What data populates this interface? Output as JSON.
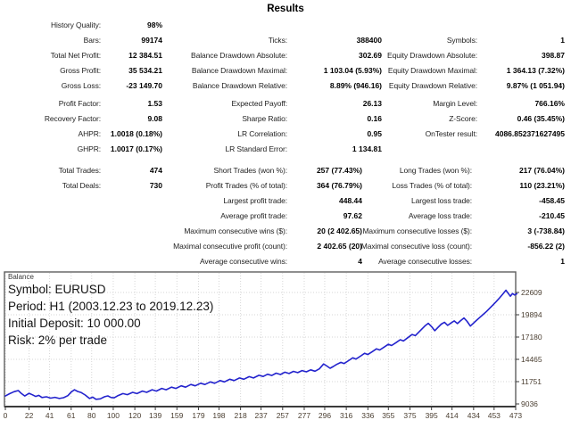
{
  "title": "Results",
  "stats_blocks": [
    [
      [
        "History Quality:",
        "98%",
        "",
        "",
        "",
        ""
      ],
      [
        "Bars:",
        "99174",
        "Ticks:",
        "388400",
        "Symbols:",
        "1"
      ],
      [
        "Total Net Profit:",
        "12 384.51",
        "Balance Drawdown Absolute:",
        "302.69",
        "Equity Drawdown Absolute:",
        "398.87"
      ],
      [
        "Gross Profit:",
        "35 534.21",
        "Balance Drawdown Maximal:",
        "1 103.04 (5.93%)",
        "Equity Drawdown Maximal:",
        "1 364.13 (7.32%)"
      ],
      [
        "Gross Loss:",
        "-23 149.70",
        "Balance Drawdown Relative:",
        "8.89% (946.16)",
        "Equity Drawdown Relative:",
        "9.87% (1 051.94)"
      ]
    ],
    [
      [
        "Profit Factor:",
        "1.53",
        "Expected Payoff:",
        "26.13",
        "Margin Level:",
        "766.16%"
      ],
      [
        "Recovery Factor:",
        "9.08",
        "Sharpe Ratio:",
        "0.16",
        "Z-Score:",
        "0.46 (35.45%)"
      ],
      [
        "AHPR:",
        "1.0018 (0.18%)",
        "LR Correlation:",
        "0.95",
        "OnTester result:",
        "4086.852371627495"
      ],
      [
        "GHPR:",
        "1.0017 (0.17%)",
        "LR Standard Error:",
        "1 134.81",
        "",
        ""
      ]
    ],
    [
      [
        "Total Trades:",
        "474",
        "Short Trades (won %):",
        "257 (77.43%)",
        "Long Trades (won %):",
        "217 (76.04%)"
      ],
      [
        "Total Deals:",
        "730",
        "Profit Trades (% of total):",
        "364 (76.79%)",
        "Loss Trades (% of total):",
        "110 (23.21%)"
      ],
      [
        "",
        "",
        "Largest profit trade:",
        "448.44",
        "Largest loss trade:",
        "-458.45"
      ],
      [
        "",
        "",
        "Average profit trade:",
        "97.62",
        "Average loss trade:",
        "-210.45"
      ],
      [
        "",
        "",
        "Maximum consecutive wins ($):",
        "20 (2 402.65)",
        "Maximum consecutive losses ($):",
        "3 (-738.84)"
      ],
      [
        "",
        "",
        "Maximal consecutive profit (count):",
        "2 402.65 (20)",
        "Maximal consecutive loss (count):",
        "-856.22 (2)"
      ],
      [
        "",
        "",
        "Average consecutive wins:",
        "4",
        "Average consecutive losses:",
        "1"
      ]
    ]
  ],
  "chart_data": {
    "type": "line",
    "title": "Balance",
    "annotations": [
      "Symbol: EURUSD",
      "Period: H1 (2003.12.23 to 2019.12.23)",
      "Initial Deposit: 10 000.00",
      "Risk: 2% per trade"
    ],
    "xlabel": "",
    "ylabel": "",
    "x_ticks": [
      0,
      22,
      41,
      61,
      80,
      100,
      120,
      139,
      159,
      179,
      198,
      218,
      237,
      257,
      277,
      296,
      316,
      336,
      355,
      375,
      395,
      414,
      434,
      453,
      473
    ],
    "y_ticks": [
      9036,
      11751,
      14465,
      17180,
      19894,
      22609
    ],
    "xlim": [
      0,
      473
    ],
    "ylim": [
      9036,
      25106
    ],
    "grid": "dotted",
    "legend_position": "none",
    "colors": {
      "line": "#2323cd",
      "grid": "#d6d6d6",
      "border": "#5f5f5f",
      "axis": "#3a3a3a",
      "tick_text": "#4c4033"
    },
    "series": [
      {
        "name": "Balance",
        "points": [
          [
            0,
            10000
          ],
          [
            4,
            10280
          ],
          [
            8,
            10520
          ],
          [
            12,
            10660
          ],
          [
            15,
            10300
          ],
          [
            18,
            10000
          ],
          [
            22,
            10330
          ],
          [
            25,
            10150
          ],
          [
            28,
            9950
          ],
          [
            31,
            10080
          ],
          [
            34,
            9820
          ],
          [
            38,
            9900
          ],
          [
            42,
            9740
          ],
          [
            46,
            9840
          ],
          [
            50,
            9700
          ],
          [
            54,
            9800
          ],
          [
            58,
            10050
          ],
          [
            61,
            10480
          ],
          [
            64,
            10760
          ],
          [
            67,
            10560
          ],
          [
            70,
            10440
          ],
          [
            74,
            10120
          ],
          [
            78,
            9700
          ],
          [
            81,
            9860
          ],
          [
            84,
            9600
          ],
          [
            88,
            9650
          ],
          [
            92,
            9920
          ],
          [
            95,
            10010
          ],
          [
            98,
            9820
          ],
          [
            101,
            9780
          ],
          [
            104,
            10020
          ],
          [
            109,
            10300
          ],
          [
            113,
            10160
          ],
          [
            118,
            10450
          ],
          [
            122,
            10300
          ],
          [
            127,
            10600
          ],
          [
            131,
            10450
          ],
          [
            136,
            10760
          ],
          [
            140,
            10600
          ],
          [
            145,
            10920
          ],
          [
            149,
            10760
          ],
          [
            154,
            11080
          ],
          [
            158,
            10920
          ],
          [
            163,
            11240
          ],
          [
            167,
            11080
          ],
          [
            172,
            11400
          ],
          [
            176,
            11240
          ],
          [
            181,
            11560
          ],
          [
            185,
            11400
          ],
          [
            190,
            11720
          ],
          [
            194,
            11560
          ],
          [
            199,
            11880
          ],
          [
            203,
            11720
          ],
          [
            208,
            12040
          ],
          [
            212,
            11880
          ],
          [
            217,
            12200
          ],
          [
            221,
            12040
          ],
          [
            226,
            12360
          ],
          [
            230,
            12200
          ],
          [
            235,
            12520
          ],
          [
            239,
            12380
          ],
          [
            243,
            12650
          ],
          [
            247,
            12500
          ],
          [
            251,
            12780
          ],
          [
            255,
            12620
          ],
          [
            259,
            12900
          ],
          [
            263,
            12740
          ],
          [
            267,
            13000
          ],
          [
            271,
            12850
          ],
          [
            275,
            13100
          ],
          [
            279,
            12950
          ],
          [
            283,
            13180
          ],
          [
            287,
            13020
          ],
          [
            291,
            13300
          ],
          [
            295,
            13900
          ],
          [
            298,
            13650
          ],
          [
            301,
            13380
          ],
          [
            304,
            13600
          ],
          [
            307,
            13850
          ],
          [
            311,
            14100
          ],
          [
            314,
            13950
          ],
          [
            318,
            14300
          ],
          [
            322,
            14650
          ],
          [
            325,
            14500
          ],
          [
            329,
            14850
          ],
          [
            333,
            15200
          ],
          [
            336,
            15050
          ],
          [
            340,
            15400
          ],
          [
            344,
            15750
          ],
          [
            347,
            15600
          ],
          [
            351,
            15950
          ],
          [
            355,
            16300
          ],
          [
            358,
            16150
          ],
          [
            362,
            16500
          ],
          [
            366,
            16850
          ],
          [
            369,
            16700
          ],
          [
            373,
            17100
          ],
          [
            377,
            17500
          ],
          [
            380,
            17350
          ],
          [
            383,
            17750
          ],
          [
            386,
            18150
          ],
          [
            389,
            18550
          ],
          [
            392,
            18850
          ],
          [
            395,
            18450
          ],
          [
            398,
            17950
          ],
          [
            401,
            18350
          ],
          [
            404,
            18750
          ],
          [
            407,
            18980
          ],
          [
            410,
            18600
          ],
          [
            413,
            18880
          ],
          [
            416,
            19150
          ],
          [
            419,
            18820
          ],
          [
            422,
            19180
          ],
          [
            425,
            19500
          ],
          [
            428,
            19080
          ],
          [
            431,
            18520
          ],
          [
            434,
            18880
          ],
          [
            437,
            19250
          ],
          [
            440,
            19600
          ],
          [
            443,
            19950
          ],
          [
            446,
            20300
          ],
          [
            449,
            20700
          ],
          [
            452,
            21100
          ],
          [
            455,
            21500
          ],
          [
            458,
            21950
          ],
          [
            461,
            22400
          ],
          [
            464,
            22880
          ],
          [
            466,
            22520
          ],
          [
            468,
            22150
          ],
          [
            470,
            22480
          ],
          [
            472,
            22300
          ],
          [
            474,
            22450
          ]
        ]
      }
    ]
  }
}
